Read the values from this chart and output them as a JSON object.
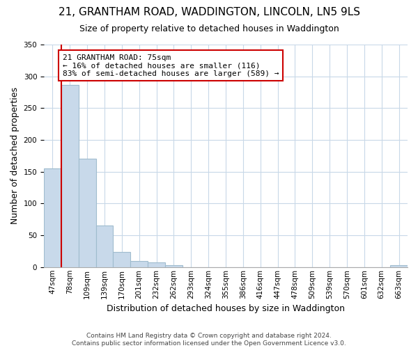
{
  "title": "21, GRANTHAM ROAD, WADDINGTON, LINCOLN, LN5 9LS",
  "subtitle": "Size of property relative to detached houses in Waddington",
  "xlabel": "Distribution of detached houses by size in Waddington",
  "ylabel": "Number of detached properties",
  "bar_labels": [
    "47sqm",
    "78sqm",
    "109sqm",
    "139sqm",
    "170sqm",
    "201sqm",
    "232sqm",
    "262sqm",
    "293sqm",
    "324sqm",
    "355sqm",
    "386sqm",
    "416sqm",
    "447sqm",
    "478sqm",
    "509sqm",
    "539sqm",
    "570sqm",
    "601sqm",
    "632sqm",
    "663sqm"
  ],
  "bar_values": [
    155,
    287,
    170,
    65,
    24,
    10,
    7,
    3,
    0,
    0,
    0,
    0,
    0,
    0,
    0,
    0,
    0,
    0,
    0,
    0,
    3
  ],
  "bar_fill_color": "#c8d9ea",
  "bar_edge_color": "#a0bcce",
  "marker_line_color": "#cc0000",
  "annotation_text": "21 GRANTHAM ROAD: 75sqm\n← 16% of detached houses are smaller (116)\n83% of semi-detached houses are larger (589) →",
  "annotation_box_edge": "#cc0000",
  "ylim": [
    0,
    350
  ],
  "yticks": [
    0,
    50,
    100,
    150,
    200,
    250,
    300,
    350
  ],
  "footer_text": "Contains HM Land Registry data © Crown copyright and database right 2024.\nContains public sector information licensed under the Open Government Licence v3.0.",
  "bg_color": "#ffffff",
  "grid_color": "#c8d8e8",
  "title_fontsize": 11,
  "subtitle_fontsize": 9,
  "label_fontsize": 9,
  "tick_fontsize": 7.5,
  "footer_fontsize": 6.5
}
